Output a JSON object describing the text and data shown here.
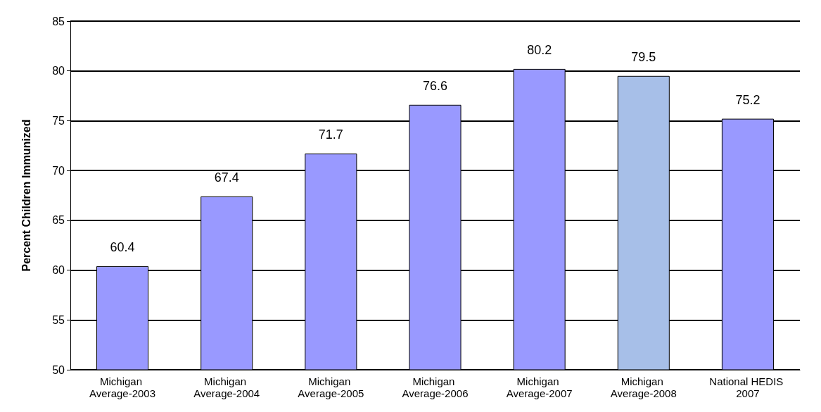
{
  "chart_data": {
    "type": "bar",
    "ylabel": "Percent Children Immunized",
    "categories": [
      "Michigan Average-2003",
      "Michigan Average-2004",
      "Michigan Average-2005",
      "Michigan Average-2006",
      "Michigan Average-2007",
      "Michigan Average-2008",
      "National HEDIS 2007"
    ],
    "values": [
      60.4,
      67.4,
      71.7,
      76.6,
      80.2,
      79.5,
      75.2
    ],
    "colors": [
      "#9999ff",
      "#9999ff",
      "#9999ff",
      "#9999ff",
      "#9999ff",
      "#a7bfe8",
      "#9999ff"
    ],
    "ylim": [
      50,
      85
    ],
    "yticks": [
      50,
      55,
      60,
      65,
      70,
      75,
      80,
      85
    ],
    "grid": "y",
    "data_labels": true
  }
}
